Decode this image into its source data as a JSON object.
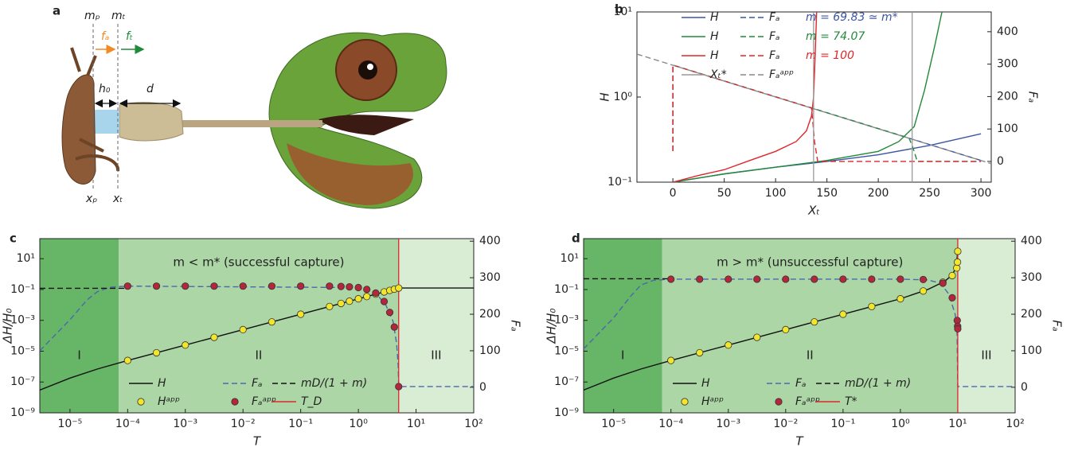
{
  "panel_a": {
    "label": "a",
    "labels": {
      "mp": "mₚ",
      "mt": "mₜ",
      "fa": "fₐ",
      "ft": "fₜ",
      "h0": "h₀",
      "d": "d",
      "xp": "xₚ",
      "xt": "xₜ"
    }
  },
  "chart_data": [
    {
      "type": "line",
      "panel": "b",
      "xlabel": "Xₜ",
      "ylabel": "H",
      "y2label": "Fₐ",
      "xlim": [
        -35,
        310
      ],
      "xticks": [
        0,
        50,
        100,
        150,
        200,
        250,
        300
      ],
      "yscale": "log",
      "ylim": [
        0.1,
        10
      ],
      "yticks": [
        {
          "value": 0.1,
          "label": "10⁻¹"
        },
        {
          "value": 1,
          "label": "10⁰"
        },
        {
          "value": 10,
          "label": "10¹"
        }
      ],
      "y2lim": [
        -64,
        461
      ],
      "y2ticks": [
        0,
        100,
        200,
        300,
        400
      ],
      "series": [
        {
          "name": "H",
          "color": "#3b55a3",
          "x": [
            0,
            50,
            100,
            150,
            200,
            250,
            300
          ],
          "values": [
            0.1,
            0.125,
            0.15,
            0.175,
            0.21,
            0.27,
            0.37
          ]
        },
        {
          "name": "H",
          "color": "#22893a",
          "x": [
            0,
            50,
            100,
            150,
            200,
            220,
            235,
            245,
            255,
            262
          ],
          "values": [
            0.1,
            0.125,
            0.15,
            0.18,
            0.23,
            0.3,
            0.45,
            1.2,
            4,
            10
          ]
        },
        {
          "name": "H",
          "color": "#e0262b",
          "x": [
            0,
            25,
            50,
            75,
            100,
            120,
            130,
            135,
            137,
            138,
            140
          ],
          "values": [
            0.1,
            0.12,
            0.14,
            0.18,
            0.23,
            0.3,
            0.4,
            0.6,
            1,
            2,
            10
          ]
        },
        {
          "name": "Fₐ",
          "color": "#3b55a3",
          "dash": true,
          "axis": "y2",
          "x": [
            0,
            0,
            300
          ],
          "values": [
            32,
            297,
            3
          ]
        },
        {
          "name": "Fₐ",
          "color": "#22893a",
          "dash": true,
          "axis": "y2",
          "x": [
            0,
            0,
            230,
            234,
            238,
            300
          ],
          "values": [
            32,
            297,
            72,
            40,
            0,
            0
          ]
        },
        {
          "name": "Fₐ",
          "color": "#e0262b",
          "dash": true,
          "axis": "y2",
          "x": [
            0,
            0,
            135,
            138,
            141,
            300
          ],
          "values": [
            32,
            297,
            165,
            60,
            0,
            0
          ]
        },
        {
          "name": "Xₜ*",
          "color": "#999999",
          "kind": "vline",
          "x": [
            137,
            233
          ]
        },
        {
          "name": "Fₐᵃᵖᵖ",
          "color": "#888888",
          "dash": true,
          "axis": "y2",
          "x": [
            -35,
            310
          ],
          "values": [
            331,
            -7
          ]
        }
      ],
      "legend_notes": [
        {
          "text": "m = 69.83 ≃ m*",
          "color": "#3b55a3"
        },
        {
          "text": "m = 74.07",
          "color": "#22893a"
        },
        {
          "text": "m = 100",
          "color": "#e0262b"
        }
      ]
    },
    {
      "type": "line",
      "panel": "c",
      "xlabel": "T",
      "ylabel": "ΔH/H₀",
      "y2label": "Fₐ",
      "annotation": "m < m* (successful capture)",
      "xscale": "log",
      "xlim": [
        3e-06,
        100
      ],
      "xticks": [
        {
          "value": 1e-05,
          "label": "10⁻⁵"
        },
        {
          "value": 0.0001,
          "label": "10⁻⁴"
        },
        {
          "value": 0.001,
          "label": "10⁻³"
        },
        {
          "value": 0.01,
          "label": "10⁻²"
        },
        {
          "value": 0.1,
          "label": "10⁻¹"
        },
        {
          "value": 1,
          "label": "10⁰"
        },
        {
          "value": 10,
          "label": "10¹"
        },
        {
          "value": 100,
          "label": "10²"
        }
      ],
      "yscale": "log",
      "ylim": [
        1e-09,
        200
      ],
      "yticks": [
        {
          "value": 1e-09,
          "label": "10⁻⁹"
        },
        {
          "value": 1e-07,
          "label": "10⁻⁷"
        },
        {
          "value": 1e-05,
          "label": "10⁻⁵"
        },
        {
          "value": 0.001,
          "label": "10⁻³"
        },
        {
          "value": 0.1,
          "label": "10⁻¹"
        },
        {
          "value": 10,
          "label": "10¹"
        }
      ],
      "y2lim": [
        -70,
        407
      ],
      "y2ticks": [
        0,
        100,
        200,
        300,
        400
      ],
      "regions": [
        {
          "label": "I",
          "x": [
            3e-06,
            7e-05
          ],
          "color": "#67b566"
        },
        {
          "label": "II",
          "x": [
            7e-05,
            5
          ],
          "color": "#acd6a5"
        },
        {
          "label": "III",
          "x": [
            5,
            100
          ],
          "color": "#d9edd5"
        }
      ],
      "series": [
        {
          "name": "H",
          "color": "#111111",
          "x": [
            3e-06,
            1e-05,
            3e-05,
            0.0001,
            0.001,
            0.01,
            0.1,
            1,
            5,
            100
          ],
          "values": [
            3e-08,
            1.8e-07,
            7e-07,
            2.5e-06,
            2.5e-05,
            0.00025,
            0.0025,
            0.025,
            0.125,
            0.125
          ]
        },
        {
          "name": "Fₐ",
          "color": "#4a68b0",
          "dash": true,
          "axis": "y2",
          "x": [
            3e-06,
            1e-05,
            2e-05,
            3e-05,
            5e-05,
            0.0001,
            1,
            2,
            3,
            4,
            4.6,
            4.9,
            5,
            100
          ],
          "values": [
            100,
            185,
            240,
            262,
            274,
            277,
            273,
            258,
            225,
            180,
            120,
            60,
            2,
            2
          ]
        },
        {
          "name": "mD/(1 + m)",
          "color": "#111111",
          "dash": true,
          "x": [
            3e-06,
            0.0001
          ],
          "values": [
            0.12,
            0.12
          ]
        },
        {
          "name": "Hᵃᵖᵖ",
          "color": "#f3e52c",
          "kind": "markers",
          "x": [
            0.0001,
            0.000316,
            0.001,
            0.00316,
            0.01,
            0.0316,
            0.1,
            0.316,
            0.5,
            0.7,
            1,
            1.4,
            2,
            2.8,
            3.5,
            4.2,
            5
          ],
          "values": [
            2.5e-06,
            7.9e-06,
            2.5e-05,
            7.9e-05,
            0.00025,
            0.00079,
            0.0025,
            0.0079,
            0.0125,
            0.0175,
            0.025,
            0.035,
            0.05,
            0.07,
            0.088,
            0.105,
            0.125
          ]
        },
        {
          "name": "Fₐᵃᵖᵖ",
          "color": "#b3263b",
          "kind": "markers",
          "axis": "y2",
          "x": [
            0.0001,
            0.000316,
            0.001,
            0.00316,
            0.01,
            0.0316,
            0.1,
            0.316,
            0.5,
            0.7,
            1,
            1.4,
            2,
            2.8,
            3.5,
            4.2,
            5
          ],
          "values": [
            277,
            277,
            277,
            277,
            277,
            277,
            277,
            277,
            276,
            275,
            273,
            268,
            258,
            235,
            205,
            165,
            2
          ]
        },
        {
          "name": "T_D",
          "color": "#e0262b",
          "kind": "vline",
          "x": [
            5
          ]
        }
      ]
    },
    {
      "type": "line",
      "panel": "d",
      "xlabel": "T",
      "ylabel": "ΔH/H₀",
      "y2label": "Fₐ",
      "annotation": "m > m* (unsuccessful capture)",
      "xscale": "log",
      "xlim": [
        3e-06,
        100
      ],
      "xticks": [
        {
          "value": 1e-05,
          "label": "10⁻⁵"
        },
        {
          "value": 0.0001,
          "label": "10⁻⁴"
        },
        {
          "value": 0.001,
          "label": "10⁻³"
        },
        {
          "value": 0.01,
          "label": "10⁻²"
        },
        {
          "value": 0.1,
          "label": "10⁻¹"
        },
        {
          "value": 1,
          "label": "10⁰"
        },
        {
          "value": 10,
          "label": "10¹"
        },
        {
          "value": 100,
          "label": "10²"
        }
      ],
      "yscale": "log",
      "ylim": [
        1e-09,
        200
      ],
      "yticks": [
        {
          "value": 1e-09,
          "label": "10⁻⁹"
        },
        {
          "value": 1e-07,
          "label": "10⁻⁷"
        },
        {
          "value": 1e-05,
          "label": "10⁻⁵"
        },
        {
          "value": 0.001,
          "label": "10⁻³"
        },
        {
          "value": 0.1,
          "label": "10⁻¹"
        },
        {
          "value": 10,
          "label": "10¹"
        }
      ],
      "y2lim": [
        -70,
        407
      ],
      "y2ticks": [
        0,
        100,
        200,
        300,
        400
      ],
      "regions": [
        {
          "label": "I",
          "x": [
            3e-06,
            7e-05
          ],
          "color": "#67b566"
        },
        {
          "label": "II",
          "x": [
            7e-05,
            10
          ],
          "color": "#acd6a5"
        },
        {
          "label": "III",
          "x": [
            10,
            100
          ],
          "color": "#d9edd5"
        }
      ],
      "series": [
        {
          "name": "H",
          "color": "#111111",
          "x": [
            3e-06,
            1e-05,
            3e-05,
            0.0001,
            0.001,
            0.01,
            0.1,
            1,
            3,
            6,
            8,
            9.5,
            10
          ],
          "values": [
            3e-08,
            1.8e-07,
            7e-07,
            2.5e-06,
            2.5e-05,
            0.00025,
            0.0025,
            0.025,
            0.1,
            0.35,
            0.9,
            3,
            40
          ]
        },
        {
          "name": "Fₐ",
          "color": "#4a68b0",
          "dash": true,
          "axis": "y2",
          "x": [
            3e-06,
            1e-05,
            2e-05,
            3e-05,
            5e-05,
            0.0001,
            1,
            3,
            5,
            7,
            9,
            9.7,
            10,
            100
          ],
          "values": [
            105,
            190,
            250,
            280,
            293,
            296,
            296,
            294,
            285,
            255,
            200,
            160,
            2,
            2
          ]
        },
        {
          "name": "mD/(1 + m)",
          "color": "#111111",
          "dash": true,
          "x": [
            3e-06,
            0.0001
          ],
          "values": [
            0.5,
            0.5
          ]
        },
        {
          "name": "Hᵃᵖᵖ",
          "color": "#f3e52c",
          "kind": "markers",
          "x": [
            0.0001,
            0.000316,
            0.001,
            0.00316,
            0.01,
            0.0316,
            0.1,
            0.316,
            1,
            2.5,
            5.5,
            8,
            9.6,
            9.9,
            10
          ],
          "values": [
            2.5e-06,
            7.9e-06,
            2.5e-05,
            7.9e-05,
            0.00025,
            0.00079,
            0.0025,
            0.0079,
            0.025,
            0.08,
            0.3,
            0.8,
            2.5,
            6,
            30
          ]
        },
        {
          "name": "Fₐᵃᵖᵖ",
          "color": "#b3263b",
          "kind": "markers",
          "axis": "y2",
          "x": [
            0.0001,
            0.000316,
            0.001,
            0.00316,
            0.01,
            0.0316,
            0.1,
            0.316,
            1,
            2.5,
            5.5,
            8,
            9.8,
            9.95,
            10
          ],
          "values": [
            296,
            296,
            296,
            296,
            296,
            296,
            296,
            296,
            296,
            295,
            285,
            245,
            183,
            167,
            160
          ]
        },
        {
          "name": "T*",
          "color": "#e0262b",
          "kind": "vline",
          "x": [
            10
          ]
        }
      ]
    }
  ]
}
